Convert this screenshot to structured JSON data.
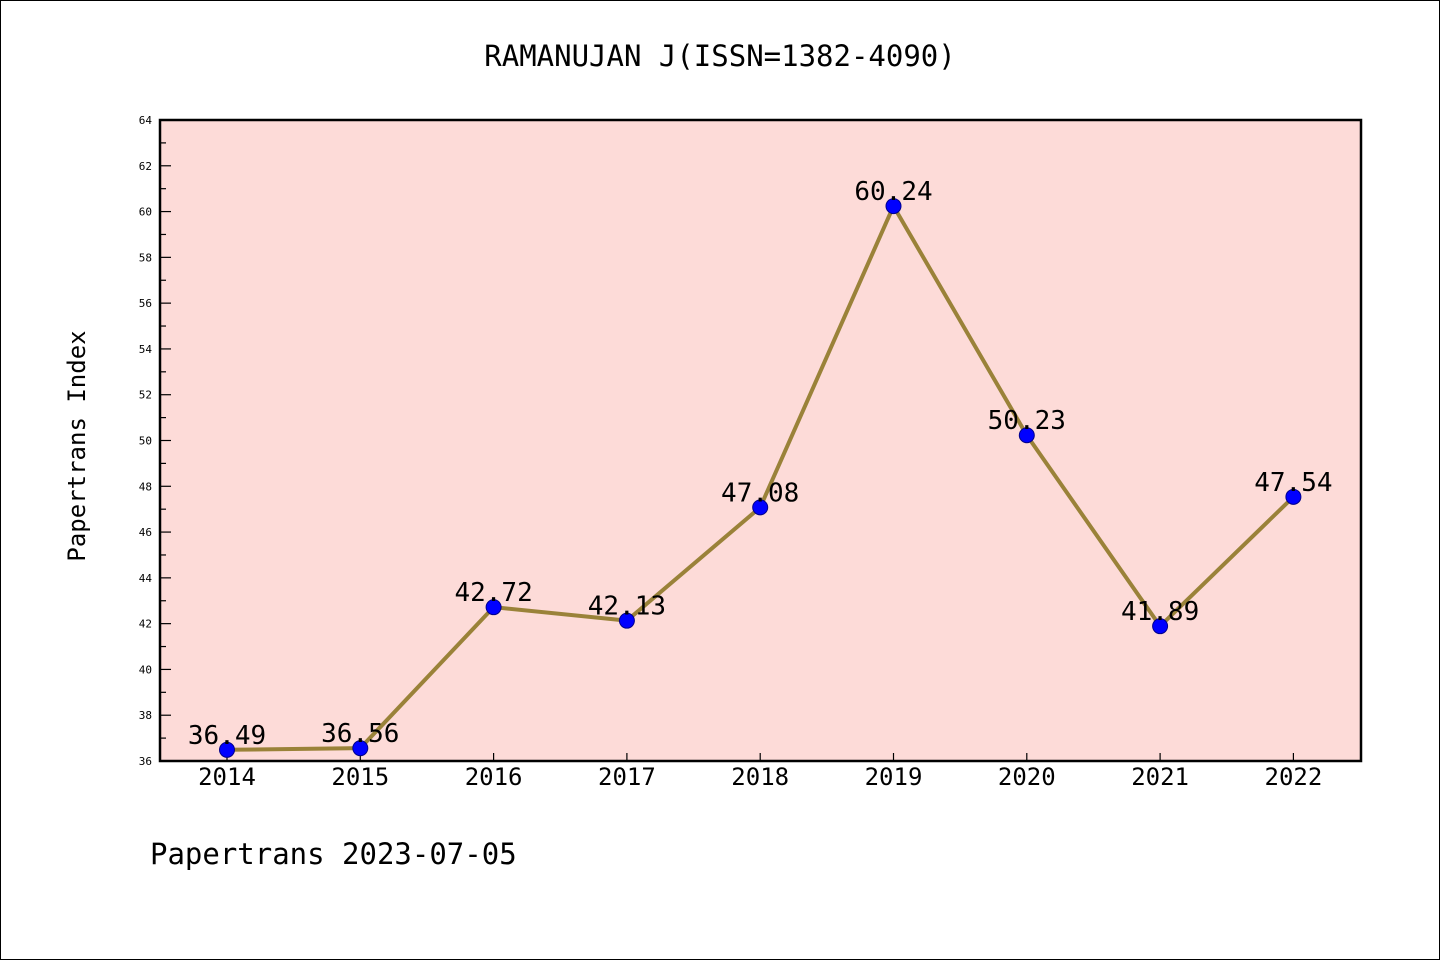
{
  "chart_data": {
    "type": "line",
    "title": "RAMANUJAN J(ISSN=1382-4090)",
    "xlabel": "",
    "ylabel": "Papertrans Index",
    "footer": "Papertrans 2023-07-05",
    "categories": [
      "2014",
      "2015",
      "2016",
      "2017",
      "2018",
      "2019",
      "2020",
      "2021",
      "2022"
    ],
    "values": [
      36.49,
      36.56,
      42.72,
      42.13,
      47.08,
      60.24,
      50.23,
      41.89,
      47.54
    ],
    "value_labels": [
      "36.49",
      "36.56",
      "42.72",
      "42.13",
      "47.08",
      "60.24",
      "50.23",
      "41.89",
      "47.54"
    ],
    "ylim": [
      36,
      64
    ],
    "yticks": [
      "36",
      "38",
      "40",
      "42",
      "44",
      "46",
      "48",
      "50",
      "52",
      "54",
      "56",
      "58",
      "60",
      "62",
      "64"
    ],
    "grid": false,
    "colors": {
      "plot_background": "#fddbd8",
      "line": "#9a8239",
      "marker": "#0000ff",
      "marker_edge": "#00008b"
    }
  }
}
